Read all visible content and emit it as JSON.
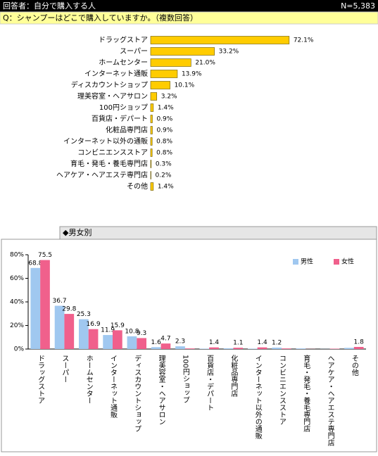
{
  "header": {
    "respondents": "回答者：自分で購入する人",
    "n": "N=5,383",
    "question": "Q：シャンプーはどこで購入していますか。（複数回答）"
  },
  "chart_data": [
    {
      "type": "bar",
      "orientation": "horizontal",
      "color": "#ffcc00",
      "categories": [
        "ドラッグストア",
        "スーパー",
        "ホームセンター",
        "インターネット通販",
        "ディスカウントショップ",
        "理美容室・ヘアサロン",
        "100円ショップ",
        "百貨店・デパート",
        "化粧品専門店",
        "インターネット以外の通販",
        "コンビニエンスストア",
        "育毛・発毛・養毛専門店",
        "ヘアケア・ヘアエステ専門店",
        "その他"
      ],
      "values": [
        72.1,
        33.2,
        21.0,
        13.9,
        10.1,
        3.2,
        1.4,
        0.9,
        0.9,
        0.8,
        0.8,
        0.3,
        0.2,
        1.4
      ],
      "value_labels": [
        "72.1%",
        "33.2%",
        "21.0%",
        "13.9%",
        "10.1%",
        "3.2%",
        "1.4%",
        "0.9%",
        "0.9%",
        "0.8%",
        "0.8%",
        "0.3%",
        "0.2%",
        "1.4%"
      ]
    },
    {
      "type": "grouped_bar",
      "title": "◆男女別",
      "legend": "top-right",
      "grid": false,
      "categories": [
        "ドラッグストア",
        "スーパー",
        "ホームセンター",
        "インターネット通販",
        "ディスカウントショップ",
        "理美容室・ヘアサロン",
        "100円ショップ",
        "百貨店・デパート",
        "化粧品専門店",
        "インターネット以外の通販",
        "コンビニエンスストア",
        "育毛・発毛・養毛専門店",
        "ヘアケア・ヘアエステ専門店",
        "その他"
      ],
      "ylim": [
        0,
        80
      ],
      "yticks": [
        {
          "value": 0,
          "label": "0%"
        },
        {
          "value": 20,
          "label": "20%"
        },
        {
          "value": 40,
          "label": "40%"
        },
        {
          "value": 60,
          "label": "60%"
        },
        {
          "value": 80,
          "label": "80%"
        }
      ],
      "series": [
        {
          "name": "男性",
          "color": "#a0c8f0",
          "values": [
            68.8,
            36.7,
            25.3,
            11.9,
            10.8,
            1.6,
            2.3,
            0.3,
            0.6,
            0.3,
            1.2,
            0.5,
            0.1,
            1.0
          ],
          "value_labels": [
            "68.8",
            "36.7",
            "25.3",
            "11.9",
            "10.8",
            "1.6",
            "2.3",
            null,
            null,
            null,
            "1.2",
            null,
            null,
            null
          ]
        },
        {
          "name": "女性",
          "color": "#f0608c",
          "values": [
            75.5,
            29.8,
            16.9,
            15.9,
            9.3,
            4.7,
            0.5,
            1.4,
            1.1,
            1.4,
            0.5,
            0.1,
            0.3,
            1.8
          ],
          "value_labels": [
            "75.5",
            "29.8",
            "16.9",
            "15.9",
            "9.3",
            "4.7",
            null,
            "1.4",
            "1.1",
            "1.4",
            null,
            null,
            null,
            "1.8"
          ]
        }
      ]
    }
  ]
}
